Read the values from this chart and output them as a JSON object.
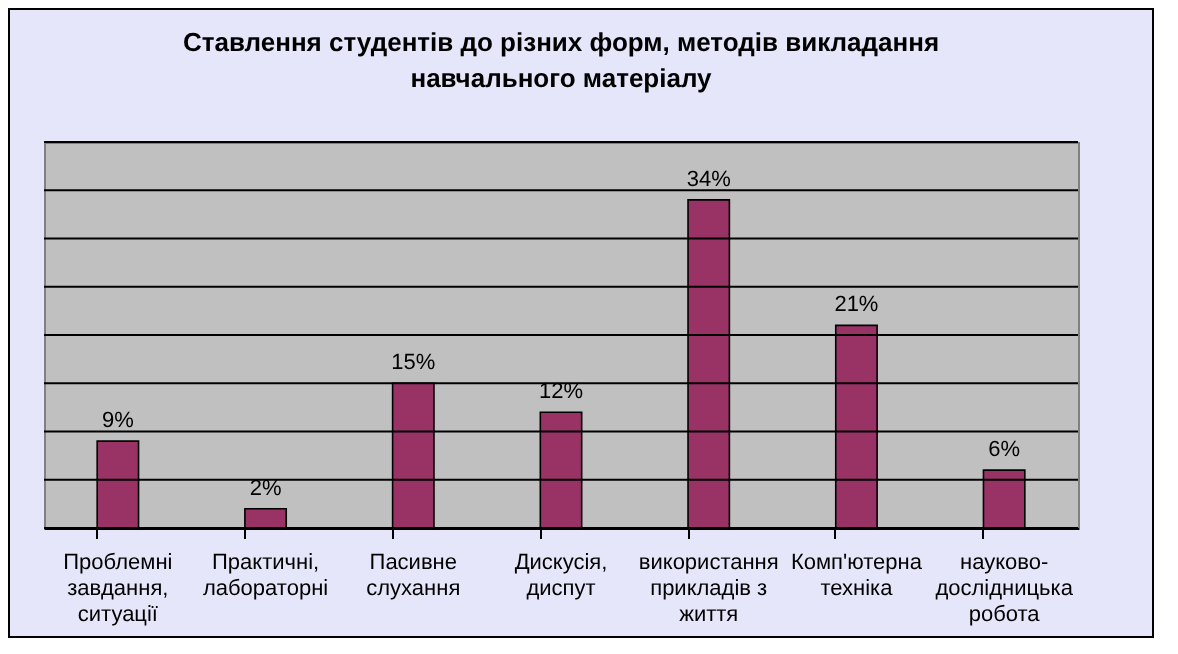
{
  "chart_data": {
    "type": "bar",
    "title": "Ставлення студентів до різних форм, методів викладання навчального матеріалу",
    "categories": [
      "Проблемні завдання, ситуації",
      "Практичні, лабораторні",
      "Пасивне слухання",
      "Дискусія, диспут",
      "використання прикладів з життя",
      "Комп'ютерна техніка",
      "науково-дослідницька робота"
    ],
    "values": [
      9,
      2,
      15,
      12,
      34,
      21,
      6
    ],
    "value_labels": [
      "9%",
      "2%",
      "15%",
      "12%",
      "34%",
      "21%",
      "6%"
    ],
    "color": "#993366",
    "ylim": [
      0,
      40
    ],
    "yticks": [
      {
        "value": 0,
        "label": null
      },
      {
        "value": 5,
        "label": null
      },
      {
        "value": 10,
        "label": null
      },
      {
        "value": 15,
        "label": null
      },
      {
        "value": 20,
        "label": null
      },
      {
        "value": 25,
        "label": null
      },
      {
        "value": 30,
        "label": null
      },
      {
        "value": 35,
        "label": null
      },
      {
        "value": 40,
        "label": null
      }
    ],
    "grid": "y",
    "tick_labels": "x"
  }
}
